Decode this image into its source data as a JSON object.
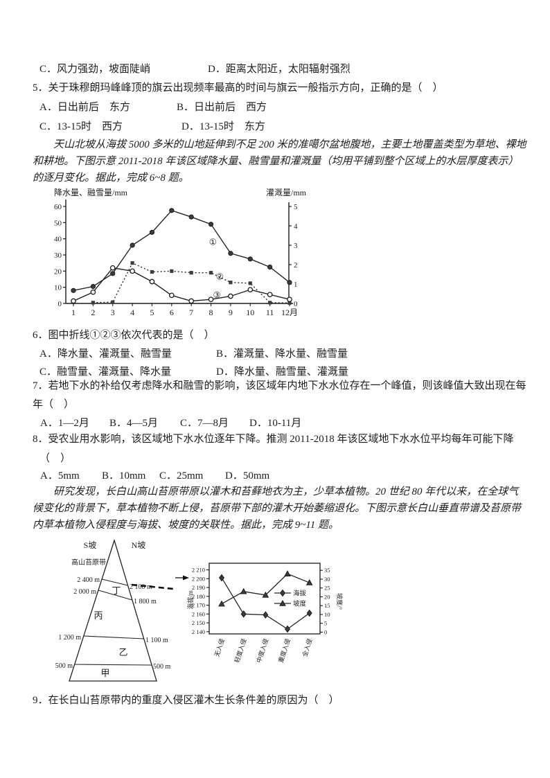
{
  "colors": {
    "ink": "#1d1d1d",
    "line": "#2a2a2a"
  },
  "q4": {
    "options": [
      "C．风力强劲，坡面陡峭",
      "D．距离太阳近，太阳辐射强烈"
    ]
  },
  "q5": {
    "stem": "5．关于珠穆朗玛峰峰顶的旗云出现频率最高的时间与旗云一般指示方向，正确的是（　）",
    "options": [
      "A．日出前后　东方",
      "B．日出前后　西方",
      "C．13-15时　西方",
      "D．13-15时　东方"
    ]
  },
  "passage1": {
    "lines": [
      "天山北坡从海拔 5000 多米的山地延伸到不足 200 米的准噶尔盆地腹地，主要土地覆盖类型为草地、裸地",
      "和耕地。下图示意 2011-2018 年该区域降水量、融雪量和灌溉量（均用平铺到整个区域上的水层厚度表示）",
      "的逐月变化。据此，完成 6~8 题。"
    ]
  },
  "q6": {
    "stem": "6．图中折线①②③依次代表的是（　）",
    "options": [
      "A．降水量、灌溉量、融雪量",
      "B．灌溉量、降水量、融雪量",
      "C．融雪量、灌溉量、降水量",
      "D．降水量、融雪量、灌溉量"
    ]
  },
  "q7": {
    "stem_lines": [
      "7．若地下水的补给仅考虑降水和融雪的影响，该区域年内地下水水位存在一个峰值，则该峰值大致出现在每",
      "年（　）"
    ],
    "options": [
      "A．1—2月",
      "B．4—5月",
      "C．7—8月",
      "D．10-11月"
    ]
  },
  "q8": {
    "stem_lines": [
      "8．受农业用水影响，该区域地下水水位逐年下降。推测 2011-2018 年该区域地下水水位平均每年可能下降",
      "（　）"
    ],
    "options": [
      "A．5mm",
      "B．10mm",
      "C．25mm",
      "D．50mm"
    ]
  },
  "passage2": {
    "lines": [
      "研究发现，长白山高山苔原带原以灌木和苔藓地衣为主，少草本植物。20 世纪 80 年代以来，在全球气",
      "候变化的背景下，草本植物不断上侵，苔原带下部的灌木开始萎缩退化。下图示意长白山垂直带谱及苔原带",
      "内草本植物入侵程度与海拔、坡度的关联性。据此，完成 9~11 题。"
    ]
  },
  "q9": {
    "stem": "9．在长白山苔原带内的重度入侵区灌木生长条件差的原因为（　）"
  },
  "mountain_diagram": {
    "slope_labels": {
      "left": "S坡",
      "right": "N坡"
    },
    "band_label": "高山苔原带",
    "left_elevations": [
      "2 400 m",
      "2 000 m",
      "1 200 m",
      "500 m"
    ],
    "right_elevations": [
      "2 100 m",
      "1 800 m",
      "1 100 m",
      "500 m"
    ],
    "zones": [
      "丁",
      "丙",
      "乙",
      "甲"
    ]
  },
  "chart_data": [
    {
      "type": "line",
      "left_axis_label": "降水量、融雪量/mm",
      "right_axis_label": "灌溉量/mm",
      "x_categories": [
        "1",
        "2",
        "3",
        "4",
        "5",
        "6",
        "7",
        "8",
        "9",
        "10",
        "11",
        "12月"
      ],
      "left_ylim": [
        0,
        60
      ],
      "left_ticks": [
        0,
        10,
        20,
        30,
        40,
        50,
        60
      ],
      "right_ylim": [
        0,
        5
      ],
      "right_ticks": [
        0,
        1,
        2,
        3,
        4,
        5
      ],
      "grid": false,
      "series": [
        {
          "name": "①",
          "axis": "left",
          "marker": "filled-circle",
          "line_style": "solid",
          "values": [
            8,
            10.5,
            18.5,
            36,
            44,
            57.5,
            53.5,
            49,
            31,
            27.5,
            22.5,
            13
          ]
        },
        {
          "name": "②",
          "axis": "left",
          "marker": "filled-square",
          "line_style": "dotted",
          "values": [
            null,
            0.5,
            0.8,
            25,
            19.5,
            20,
            19,
            19,
            13,
            12.5,
            0.5,
            0.3
          ]
        },
        {
          "name": "③",
          "axis": "left",
          "marker": "open-circle",
          "line_style": "solid",
          "values": [
            1.5,
            7,
            22,
            20,
            13.5,
            5,
            1.5,
            2.5,
            4.5,
            8.5,
            5.5,
            2.5
          ]
        }
      ],
      "annotations": [
        {
          "text": "①",
          "x": 8.1,
          "y": 38
        },
        {
          "text": "②",
          "x": 8.45,
          "y": 16.5
        },
        {
          "text": "③",
          "x": 8.3,
          "y": 5.2
        }
      ]
    },
    {
      "type": "line",
      "left_axis_label": "海拔/m",
      "right_axis_label": "坡度/°",
      "x_categories": [
        "无入侵",
        "轻度入侵",
        "中度入侵",
        "重度入侵",
        "全入侵"
      ],
      "left_ylim": [
        2137.5,
        2217.5
      ],
      "left_ticks": [
        2140,
        2150,
        2160,
        2170,
        2180,
        2190,
        2200,
        2210
      ],
      "right_ylim": [
        -1,
        39
      ],
      "right_ticks": [
        0,
        5,
        10,
        15,
        20,
        25,
        30,
        35
      ],
      "grid": false,
      "legend": [
        {
          "name": "海拔",
          "marker": "diamond"
        },
        {
          "name": "坡度",
          "marker": "triangle"
        }
      ],
      "series": [
        {
          "name": "海拔",
          "axis": "left",
          "marker": "diamond",
          "line_style": "solid",
          "values": [
            2201,
            2160,
            2159,
            2143,
            2161
          ]
        },
        {
          "name": "坡度",
          "axis": "right",
          "marker": "triangle",
          "line_style": "solid",
          "values": [
            16,
            23,
            21,
            33,
            28
          ]
        }
      ]
    }
  ]
}
